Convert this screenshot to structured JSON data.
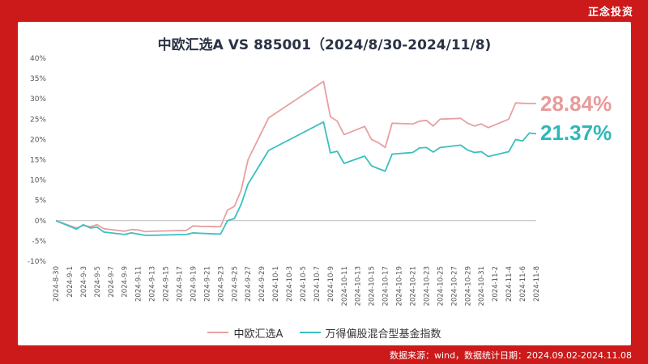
{
  "brand": "正念投资",
  "source": "数据来源：wind，数据统计日期：2024.09.02-2024.11.08",
  "colors": {
    "series1": "#e8a0a0",
    "series2": "#3cbfbf",
    "end1": "#e89a9a",
    "end2": "#2fb8b8"
  },
  "chart_data": {
    "type": "line",
    "title": "中欧汇选A VS 885001（2024/8/30-2024/11/8)",
    "ylim": [
      -10,
      40
    ],
    "yticks": [
      "-10%",
      "-5%",
      "0%",
      "5%",
      "10%",
      "15%",
      "20%",
      "25%",
      "30%",
      "35%",
      "40%"
    ],
    "ytick_values": [
      -10,
      -5,
      0,
      5,
      10,
      15,
      20,
      25,
      30,
      35,
      40
    ],
    "x": [
      "2024-8-30",
      "2024-9-2",
      "2024-9-3",
      "2024-9-4",
      "2024-9-5",
      "2024-9-6",
      "2024-9-9",
      "2024-9-10",
      "2024-9-11",
      "2024-9-12",
      "2024-9-13",
      "2024-9-18",
      "2024-9-19",
      "2024-9-20",
      "2024-9-23",
      "2024-9-24",
      "2024-9-25",
      "2024-9-26",
      "2024-9-27",
      "2024-9-30",
      "2024-10-8",
      "2024-10-9",
      "2024-10-10",
      "2024-10-11",
      "2024-10-14",
      "2024-10-15",
      "2024-10-16",
      "2024-10-17",
      "2024-10-18",
      "2024-10-21",
      "2024-10-22",
      "2024-10-23",
      "2024-10-24",
      "2024-10-25",
      "2024-10-28",
      "2024-10-29",
      "2024-10-30",
      "2024-10-31",
      "2024-11-1",
      "2024-11-4",
      "2024-11-5",
      "2024-11-6",
      "2024-11-7",
      "2024-11-8"
    ],
    "xtick_labels": [
      "2024-8-30",
      "2024-9-1",
      "2024-9-3",
      "2024-9-5",
      "2024-9-7",
      "2024-9-9",
      "2024-9-11",
      "2024-9-13",
      "2024-9-15",
      "2024-9-17",
      "2024-9-19",
      "2024-9-21",
      "2024-9-23",
      "2024-9-25",
      "2024-9-27",
      "2024-9-29",
      "2024-10-1",
      "2024-10-3",
      "2024-10-5",
      "2024-10-7",
      "2024-10-9",
      "2024-10-11",
      "2024-10-13",
      "2024-10-15",
      "2024-10-17",
      "2024-10-19",
      "2024-10-21",
      "2024-10-23",
      "2024-10-25",
      "2024-10-27",
      "2024-10-29",
      "2024-10-31",
      "2024-11-2",
      "2024-11-4",
      "2024-11-6",
      "2024-11-8"
    ],
    "series": [
      {
        "name": "中欧汇选A",
        "end_label": "28.84%",
        "values": [
          0,
          -1.8,
          -1.2,
          -1.5,
          -1.0,
          -2.0,
          -2.6,
          -2.2,
          -2.3,
          -2.7,
          -2.6,
          -2.4,
          -1.3,
          -1.4,
          -1.5,
          2.6,
          3.5,
          7.5,
          15,
          25.3,
          34.3,
          25.6,
          24.5,
          21.2,
          23.2,
          20.0,
          19.2,
          18.0,
          24.0,
          23.8,
          24.5,
          24.7,
          23.3,
          25.0,
          25.2,
          24.0,
          23.3,
          23.8,
          22.9,
          25.0,
          29.0,
          28.9,
          28.84,
          28.84
        ]
      },
      {
        "name": "万得偏股混合型基金指数",
        "end_label": "21.37%",
        "values": [
          0,
          -2.1,
          -1.0,
          -1.8,
          -1.6,
          -2.8,
          -3.4,
          -3.0,
          -3.3,
          -3.6,
          -3.6,
          -3.4,
          -3.0,
          -3.1,
          -3.3,
          0.0,
          0.5,
          4.0,
          9.0,
          17.3,
          24.3,
          16.7,
          17.1,
          14.1,
          15.9,
          13.5,
          12.8,
          12.2,
          16.4,
          16.8,
          17.9,
          18.0,
          16.9,
          18.0,
          18.6,
          17.4,
          16.8,
          17.0,
          15.8,
          17.0,
          20.0,
          19.6,
          21.6,
          21.37
        ]
      }
    ],
    "legend_position": "bottom",
    "grid": false
  }
}
